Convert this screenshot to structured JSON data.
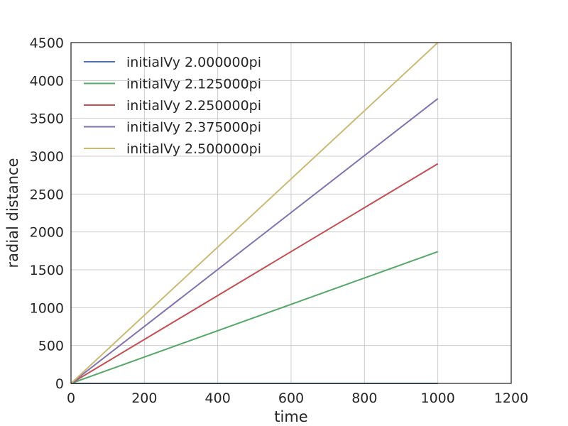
{
  "chart_data": {
    "type": "line",
    "title": "",
    "xlabel": "time",
    "ylabel": "radial distance",
    "xlim": [
      0,
      1200
    ],
    "ylim": [
      0,
      4500
    ],
    "xticks": [
      0,
      200,
      400,
      600,
      800,
      1000,
      1200
    ],
    "yticks": [
      0,
      500,
      1000,
      1500,
      2000,
      2500,
      3000,
      3500,
      4000,
      4500
    ],
    "grid": true,
    "legend_position": "top-left",
    "series": [
      {
        "name": "initialVy 2.000000pi",
        "color": "#4c72b0",
        "x": [
          0,
          1000
        ],
        "y": [
          0,
          0
        ]
      },
      {
        "name": "initialVy 2.125000pi",
        "color": "#55a868",
        "x": [
          0,
          1000
        ],
        "y": [
          0,
          1740
        ]
      },
      {
        "name": "initialVy 2.250000pi",
        "color": "#c44e52",
        "x": [
          0,
          1000
        ],
        "y": [
          0,
          2900
        ]
      },
      {
        "name": "initialVy 2.375000pi",
        "color": "#8172b2",
        "x": [
          0,
          1000
        ],
        "y": [
          0,
          3760
        ]
      },
      {
        "name": "initialVy 2.500000pi",
        "color": "#ccb974",
        "x": [
          0,
          1000
        ],
        "y": [
          0,
          4500
        ]
      }
    ]
  }
}
